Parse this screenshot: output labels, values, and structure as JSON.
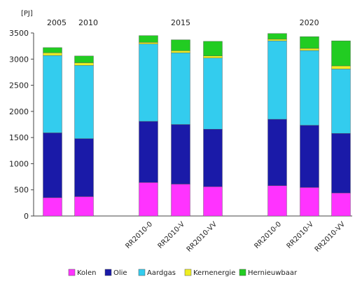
{
  "chart_data": {
    "type": "bar",
    "stacked": true,
    "unit_label": "[PJ]",
    "ylim": [
      0,
      3500
    ],
    "yticks": [
      0,
      500,
      1000,
      1500,
      2000,
      2500,
      3000,
      3500
    ],
    "grid": false,
    "legend_position": "bottom",
    "group_labels": [
      {
        "label": "2005",
        "categories": [
          0
        ]
      },
      {
        "label": "2010",
        "categories": [
          1
        ]
      },
      {
        "label": "2015",
        "categories": [
          2,
          3,
          4
        ]
      },
      {
        "label": "2020",
        "categories": [
          5,
          6,
          7
        ]
      }
    ],
    "categories": [
      "",
      "",
      "RR2010-0",
      "RR2010-V",
      "RR2010-VV",
      "RR2010-0",
      "RR2010-V",
      "RR2010-VV"
    ],
    "series": [
      {
        "name": "Kolen",
        "color": "#ff33ff",
        "values": [
          350,
          370,
          640,
          610,
          560,
          580,
          545,
          440
        ]
      },
      {
        "name": "Olie",
        "color": "#1a1aa8",
        "values": [
          1240,
          1110,
          1170,
          1140,
          1100,
          1270,
          1190,
          1140
        ]
      },
      {
        "name": "Aardgas",
        "color": "#33ccee",
        "values": [
          1480,
          1400,
          1480,
          1370,
          1360,
          1500,
          1430,
          1230
        ]
      },
      {
        "name": "Kernenergie",
        "color": "#eeee22",
        "values": [
          50,
          50,
          30,
          40,
          40,
          30,
          40,
          60
        ]
      },
      {
        "name": "Hernieuwbaar",
        "color": "#22cc22",
        "values": [
          100,
          130,
          130,
          210,
          280,
          110,
          225,
          480
        ]
      }
    ]
  }
}
